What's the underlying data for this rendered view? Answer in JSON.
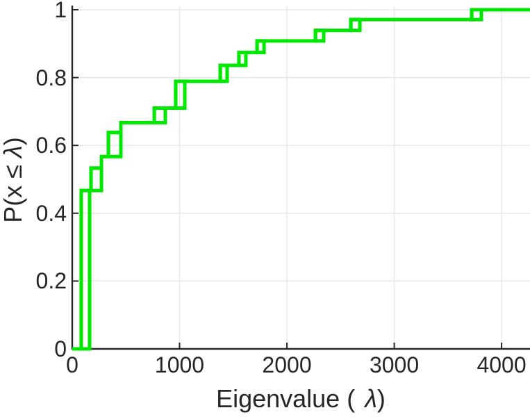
{
  "figure": {
    "xlabel_prefix": "Eigenvalue (",
    "xlabel_lambda": "λ",
    "xlabel_suffix": ")",
    "ylabel_prefix": "P(x ≤ ",
    "ylabel_lambda": "λ",
    "ylabel_suffix": ")"
  },
  "chart_data": {
    "type": "line",
    "subtype": "empirical-cdf-stairs",
    "title": "",
    "xlabel": "Eigenvalue ( λ)",
    "ylabel": "P(x ≤ λ)",
    "xlim": [
      0,
      4265
    ],
    "ylim": [
      0,
      1
    ],
    "xticks": [
      0,
      1000,
      2000,
      3000,
      4000
    ],
    "xtick_labels": [
      "0",
      "1000",
      "2000",
      "3000",
      "4000"
    ],
    "yticks": [
      0,
      0.2,
      0.4,
      0.6,
      0.8,
      1
    ],
    "ytick_labels": [
      "0",
      "0.2",
      "0.4",
      "0.6",
      "0.8",
      "1"
    ],
    "grid": true,
    "legend": "none",
    "line_color": "#00E800",
    "line_width": 5,
    "axis_color": "#262626",
    "grid_color": "#E8E8E8",
    "start_point": {
      "x": 0,
      "f": 0
    },
    "steps": [
      {
        "x": 84,
        "f": 0.467
      },
      {
        "x": 175,
        "f": 0.533
      },
      {
        "x": 272,
        "f": 0.567
      },
      {
        "x": 337,
        "f": 0.638
      },
      {
        "x": 453,
        "f": 0.667
      },
      {
        "x": 764,
        "f": 0.71
      },
      {
        "x": 964,
        "f": 0.789
      },
      {
        "x": 1379,
        "f": 0.836
      },
      {
        "x": 1553,
        "f": 0.874
      },
      {
        "x": 1722,
        "f": 0.908
      },
      {
        "x": 2266,
        "f": 0.939
      },
      {
        "x": 2596,
        "f": 0.971
      },
      {
        "x": 3722,
        "f": 1.0
      }
    ],
    "end_x": 4265,
    "double_step_windows": [
      {
        "x1": 84,
        "x2": 162,
        "f1": 0,
        "f2": 0.467
      },
      {
        "x1": 175,
        "x2": 272,
        "f1": 0.467,
        "f2": 0.533
      },
      {
        "x1": 337,
        "x2": 453,
        "f1": 0.567,
        "f2": 0.638
      },
      {
        "x1": 764,
        "x2": 867,
        "f1": 0.667,
        "f2": 0.71
      },
      {
        "x1": 964,
        "x2": 1049,
        "f1": 0.71,
        "f2": 0.789
      },
      {
        "x1": 1379,
        "x2": 1443,
        "f1": 0.789,
        "f2": 0.836
      },
      {
        "x1": 1553,
        "x2": 1618,
        "f1": 0.836,
        "f2": 0.874
      },
      {
        "x1": 1722,
        "x2": 1787,
        "f1": 0.874,
        "f2": 0.908
      },
      {
        "x1": 2266,
        "x2": 2343,
        "f1": 0.908,
        "f2": 0.939
      },
      {
        "x1": 2596,
        "x2": 2680,
        "f1": 0.939,
        "f2": 0.971
      },
      {
        "x1": 3722,
        "x2": 3812,
        "f1": 0.971,
        "f2": 1.0
      }
    ]
  }
}
